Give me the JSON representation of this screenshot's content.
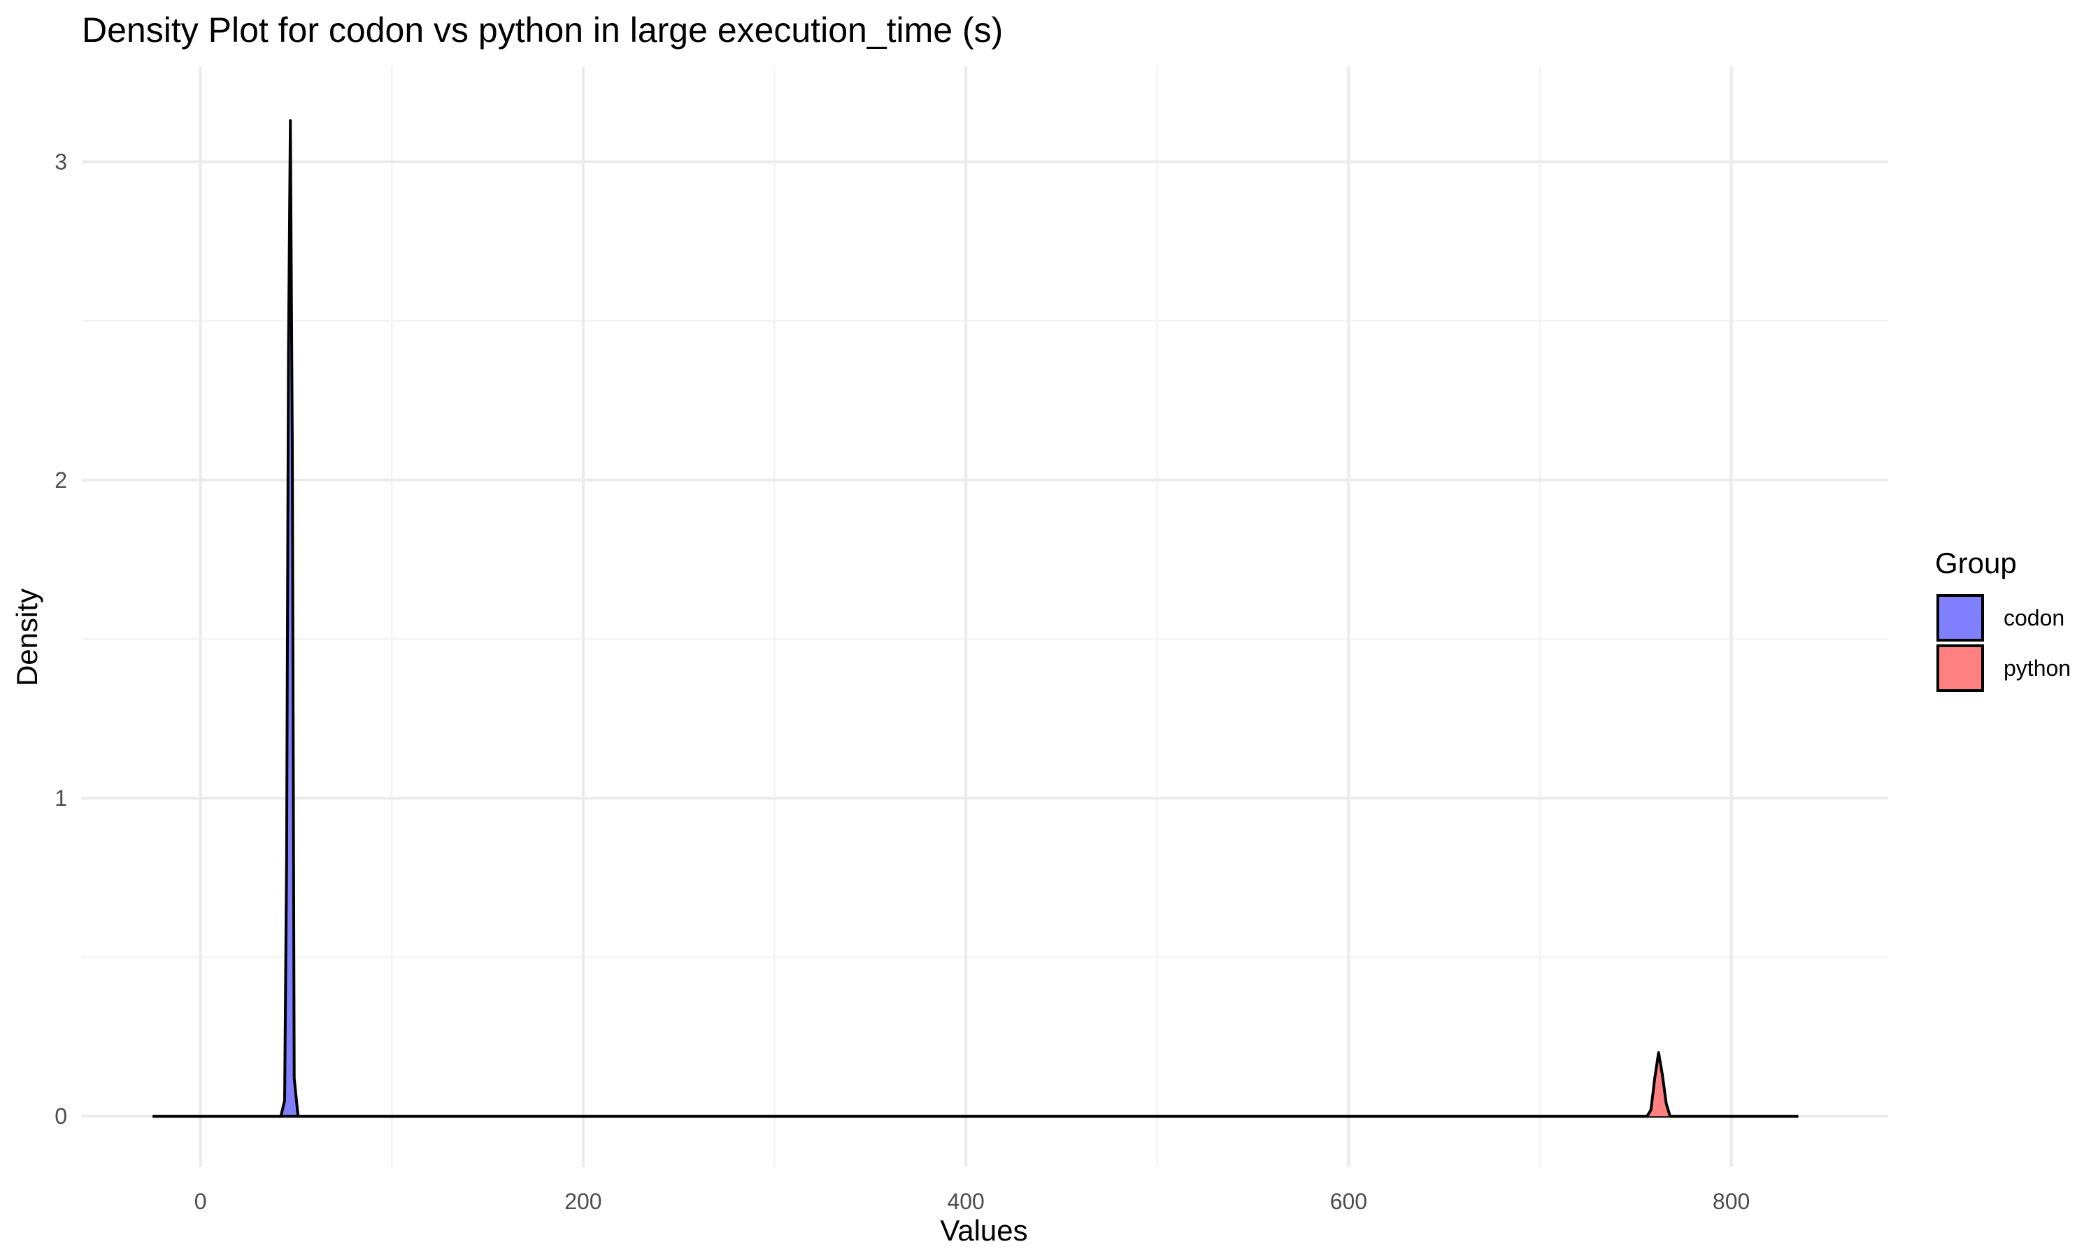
{
  "chart_data": {
    "type": "area",
    "subtype": "density",
    "title": "Density Plot for codon vs python in large execution_time (s)",
    "xlabel": "Values",
    "ylabel": "Density",
    "xlim": [
      -62,
      882
    ],
    "ylim": [
      -0.16,
      3.3
    ],
    "x_ticks": [
      0,
      200,
      400,
      600,
      800
    ],
    "y_ticks": [
      0,
      1,
      2,
      3
    ],
    "grid": true,
    "legend": {
      "title": "Group",
      "position": "right"
    },
    "series": [
      {
        "name": "codon",
        "color": "#8080ff",
        "x": [
          -25,
          42,
          44,
          45,
          46,
          47,
          48,
          49,
          51,
          835
        ],
        "y": [
          0,
          0,
          0.05,
          0.8,
          2.4,
          3.13,
          2.1,
          0.12,
          0,
          0
        ]
      },
      {
        "name": "python",
        "color": "#ff8080",
        "x": [
          -25,
          756,
          758,
          760,
          762,
          764,
          766,
          768,
          835
        ],
        "y": [
          0,
          0,
          0.02,
          0.12,
          0.2,
          0.13,
          0.04,
          0,
          0
        ]
      }
    ]
  }
}
